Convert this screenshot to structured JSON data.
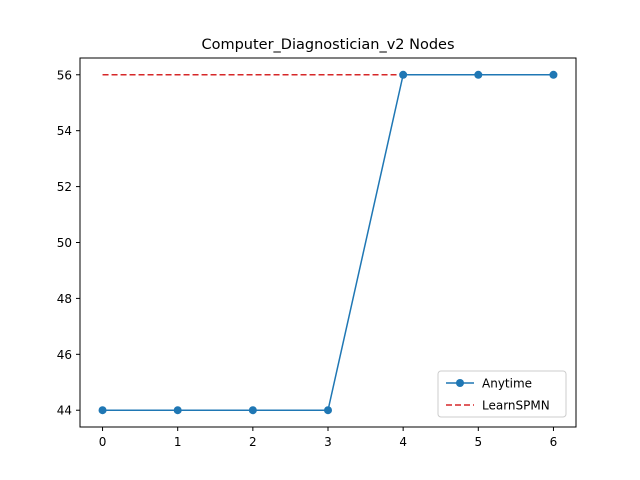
{
  "chart_data": {
    "type": "line",
    "title": "Computer_Diagnostician_v2 Nodes",
    "xlabel": "",
    "ylabel": "",
    "x": [
      0,
      1,
      2,
      3,
      4,
      5,
      6
    ],
    "xlim": [
      -0.3,
      6.3
    ],
    "ylim": [
      43.4,
      56.6
    ],
    "xticks": [
      0,
      1,
      2,
      3,
      4,
      5,
      6
    ],
    "yticks": [
      44,
      46,
      48,
      50,
      52,
      54,
      56
    ],
    "grid": false,
    "legend_position": "lower-right",
    "series": [
      {
        "name": "Anytime",
        "values": [
          44,
          44,
          44,
          44,
          56,
          56,
          56
        ],
        "color": "#1f77b4",
        "style": "solid",
        "marker": "circle"
      },
      {
        "name": "LearnSPMN",
        "values": [
          56,
          56,
          56,
          56,
          56,
          56,
          56
        ],
        "color": "#d62728",
        "style": "dashed",
        "marker": "none"
      }
    ]
  }
}
